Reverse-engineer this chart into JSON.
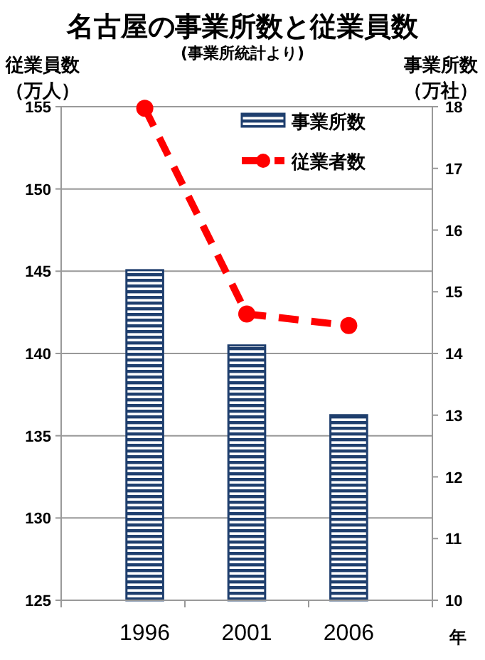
{
  "chart_data": {
    "type": "bar",
    "title": "名古屋の事業所数と従業員数",
    "subtitle": "(事業所統計より)",
    "xlabel": "年",
    "ylabel": "従業員数（万人）",
    "y2label": "事業所数（万社）",
    "categories": [
      "1996",
      "2001",
      "2006"
    ],
    "series": [
      {
        "name": "事業所数",
        "color": "#1f3f6e",
        "axis": "y2",
        "values": [
          15.35,
          14.13,
          13.0
        ]
      },
      {
        "name": "従業者数",
        "type": "line",
        "color": "#ff0000",
        "axis": "y",
        "values": [
          154.9,
          142.4,
          141.7
        ],
        "marker": "circle",
        "line_style": "dashed"
      }
    ],
    "ylim": [
      125,
      155
    ],
    "yticks": [
      125,
      130,
      135,
      140,
      145,
      150,
      155
    ],
    "y2lim": [
      10,
      18
    ],
    "y2ticks": [
      10,
      11,
      12,
      13,
      14,
      15,
      16,
      17,
      18
    ],
    "grid": "y",
    "legend": "top right"
  }
}
